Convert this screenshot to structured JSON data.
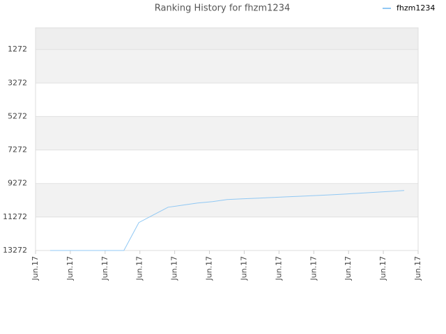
{
  "chart_data": {
    "type": "line",
    "title": "Ranking History for fhzm1234",
    "x": [
      0.42,
      0.84,
      1.27,
      1.69,
      2.12,
      2.54,
      2.97,
      3.39,
      3.81,
      4.24,
      4.66,
      5.09,
      5.51,
      5.94,
      6.36,
      6.78,
      7.21,
      7.63,
      8.06,
      8.48,
      8.91,
      9.33,
      9.75,
      10.18,
      10.6
    ],
    "series": [
      {
        "name": "fhzm1234",
        "color": "#90c8f4",
        "values": [
          13272,
          13272,
          13272,
          13272,
          13272,
          13272,
          11605,
          11147,
          10689,
          10564,
          10439,
          10355,
          10230,
          10189,
          10150,
          10110,
          10070,
          10030,
          9990,
          9950,
          9900,
          9850,
          9800,
          9745,
          9689
        ]
      }
    ],
    "xlim": [
      0,
      11
    ],
    "xticks": [
      {
        "value": 0,
        "label": "Jun.17"
      },
      {
        "value": 1,
        "label": "Jun.17"
      },
      {
        "value": 2,
        "label": "Jun.17"
      },
      {
        "value": 3,
        "label": "Jun.17"
      },
      {
        "value": 4,
        "label": "Jun.17"
      },
      {
        "value": 5,
        "label": "Jun.17"
      },
      {
        "value": 6,
        "label": "Jun.17"
      },
      {
        "value": 7,
        "label": "Jun.17"
      },
      {
        "value": 8,
        "label": "Jun.17"
      },
      {
        "value": 9,
        "label": "Jun.17"
      },
      {
        "value": 10,
        "label": "Jun.17"
      },
      {
        "value": 11,
        "label": "Jun.17"
      }
    ],
    "ylim": [
      13272,
      -20
    ],
    "yticks": [
      1272,
      3272,
      5272,
      7272,
      9272,
      11272,
      13272
    ],
    "grid": true,
    "legend": "top-right"
  }
}
